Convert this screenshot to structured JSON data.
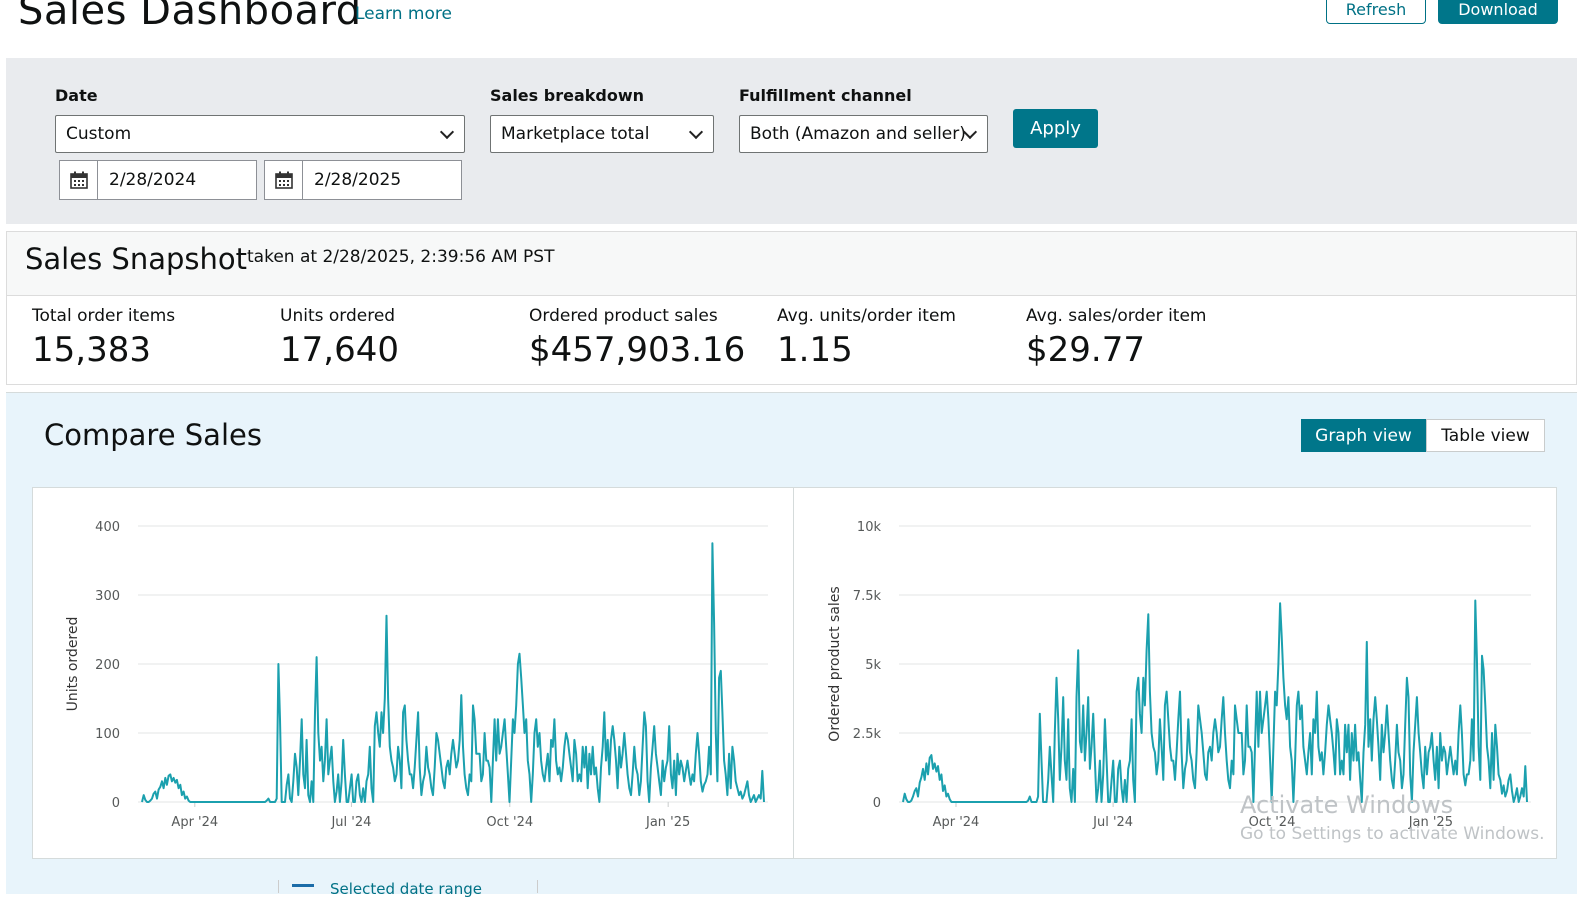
{
  "header": {
    "title": "Sales Dashboard",
    "learn_more": "Learn more",
    "refresh": "Refresh",
    "download": "Download"
  },
  "filters": {
    "date_label": "Date",
    "date_value": "Custom",
    "start_date": "2/28/2024",
    "end_date": "2/28/2025",
    "breakdown_label": "Sales breakdown",
    "breakdown_value": "Marketplace total",
    "channel_label": "Fulfillment channel",
    "channel_value": "Both (Amazon and seller)",
    "apply": "Apply"
  },
  "snapshot": {
    "title": "Sales Snapshot",
    "timestamp": "taken at 2/28/2025, 2:39:56 AM PST",
    "metrics": [
      {
        "label": "Total order items",
        "value": "15,383"
      },
      {
        "label": "Units ordered",
        "value": "17,640"
      },
      {
        "label": "Ordered product sales",
        "value": "$457,903.16"
      },
      {
        "label": "Avg. units/order item",
        "value": "1.15"
      },
      {
        "label": "Avg. sales/order item",
        "value": "$29.77"
      }
    ]
  },
  "compare": {
    "title": "Compare Sales",
    "graph_view": "Graph view",
    "table_view": "Table view",
    "partial_legend": "Selected date range"
  },
  "chart_data": [
    {
      "type": "line",
      "ylabel": "Units ordered",
      "ylim": [
        0,
        400
      ],
      "yticks": [
        "0",
        "100",
        "200",
        "300",
        "400"
      ],
      "xticks": [
        "Apr '24",
        "Jul '24",
        "Oct '24",
        "Jan '25"
      ],
      "x_range": [
        "2024-02-28",
        "2025-02-28"
      ],
      "color": "#1ba0ae",
      "series": [
        {
          "values": [
            0,
            10,
            3,
            0,
            0,
            2,
            5,
            12,
            15,
            5,
            18,
            22,
            30,
            20,
            35,
            25,
            38,
            40,
            30,
            35,
            28,
            32,
            20,
            25,
            10,
            15,
            5,
            8,
            2,
            0,
            0,
            0,
            0,
            0,
            0,
            0,
            0,
            0,
            0,
            0,
            0,
            0,
            0,
            0,
            0,
            0,
            0,
            0,
            0,
            0,
            0,
            0,
            0,
            0,
            0,
            0,
            0,
            0,
            0,
            0,
            0,
            0,
            0,
            0,
            0,
            0,
            0,
            0,
            0,
            0,
            0,
            0,
            0,
            0,
            0,
            2,
            5,
            0,
            0,
            0,
            0,
            5,
            200,
            120,
            0,
            0,
            0,
            25,
            40,
            5,
            0,
            30,
            70,
            50,
            10,
            60,
            120,
            40,
            20,
            90,
            10,
            0,
            30,
            0,
            130,
            210,
            100,
            60,
            80,
            30,
            60,
            120,
            40,
            60,
            80,
            30,
            0,
            15,
            40,
            0,
            30,
            90,
            40,
            0,
            0,
            20,
            40,
            0,
            0,
            30,
            40,
            10,
            0,
            20,
            0,
            30,
            40,
            80,
            20,
            0,
            110,
            130,
            100,
            80,
            130,
            100,
            150,
            270,
            150,
            80,
            60,
            50,
            30,
            40,
            80,
            60,
            20,
            130,
            140,
            90,
            60,
            40,
            40,
            20,
            50,
            90,
            130,
            50,
            10,
            30,
            40,
            80,
            50,
            40,
            20,
            10,
            50,
            100,
            90,
            70,
            50,
            30,
            20,
            50,
            60,
            40,
            70,
            90,
            70,
            50,
            60,
            90,
            155,
            80,
            40,
            20,
            10,
            40,
            30,
            140,
            120,
            70,
            70,
            70,
            30,
            40,
            100,
            60,
            60,
            50,
            0,
            60,
            120,
            60,
            120,
            70,
            80,
            100,
            120,
            80,
            40,
            0,
            60,
            120,
            100,
            140,
            200,
            215,
            180,
            140,
            100,
            120,
            60,
            40,
            0,
            40,
            100,
            120,
            80,
            100,
            60,
            40,
            30,
            50,
            70,
            30,
            90,
            80,
            120,
            60,
            40,
            50,
            30,
            50,
            80,
            100,
            90,
            70,
            50,
            30,
            90,
            70,
            30,
            40,
            30,
            80,
            50,
            80,
            20,
            70,
            40,
            80,
            40,
            50,
            20,
            0,
            50,
            80,
            130,
            60,
            90,
            40,
            90,
            110,
            90,
            60,
            20,
            80,
            50,
            70,
            100,
            70,
            40,
            20,
            10,
            40,
            80,
            50,
            40,
            10,
            30,
            80,
            130,
            110,
            30,
            0,
            50,
            80,
            110,
            70,
            50,
            30,
            10,
            60,
            30,
            50,
            60,
            110,
            40,
            20,
            60,
            10,
            70,
            40,
            60,
            50,
            30,
            45,
            60,
            40,
            25,
            40,
            30,
            70,
            100,
            70,
            30,
            15,
            25,
            30,
            40,
            80,
            40,
            375,
            260,
            100,
            30,
            180,
            190,
            130,
            60,
            40,
            10,
            70,
            20,
            80,
            60,
            30,
            20,
            10,
            15,
            5,
            10,
            20,
            30,
            10,
            0,
            5,
            10,
            0,
            5,
            10,
            5,
            45,
            0
          ]
        }
      ]
    },
    {
      "type": "line",
      "ylabel": "Ordered product sales",
      "ylim": [
        0,
        10000
      ],
      "yticks": [
        "0",
        "2.5k",
        "5k",
        "7.5k",
        "10k"
      ],
      "xticks": [
        "Apr '24",
        "Jul '24",
        "Oct '24",
        "Jan '25"
      ],
      "x_range": [
        "2024-02-28",
        "2025-02-28"
      ],
      "color": "#1ba0ae",
      "series": [
        {
          "values": [
            0,
            300,
            100,
            0,
            0,
            50,
            200,
            400,
            500,
            200,
            700,
            900,
            1200,
            800,
            1400,
            1000,
            1600,
            1700,
            1200,
            1400,
            1100,
            1300,
            800,
            1000,
            400,
            600,
            200,
            300,
            100,
            0,
            0,
            0,
            0,
            0,
            0,
            0,
            0,
            0,
            0,
            0,
            0,
            0,
            0,
            0,
            0,
            0,
            0,
            0,
            0,
            0,
            0,
            0,
            0,
            0,
            0,
            0,
            0,
            0,
            0,
            0,
            0,
            0,
            0,
            0,
            0,
            0,
            0,
            0,
            0,
            0,
            0,
            0,
            0,
            0,
            0,
            50,
            200,
            0,
            0,
            0,
            0,
            200,
            3200,
            1500,
            0,
            0,
            0,
            800,
            2000,
            1000,
            0,
            2500,
            4500,
            3000,
            800,
            2000,
            3800,
            1500,
            800,
            3000,
            500,
            0,
            1200,
            0,
            3800,
            5500,
            2200,
            1800,
            3500,
            1500,
            2500,
            3800,
            1200,
            2000,
            3200,
            1500,
            0,
            500,
            1500,
            0,
            1000,
            3000,
            1500,
            0,
            0,
            800,
            1500,
            0,
            0,
            1200,
            1500,
            500,
            0,
            800,
            0,
            1200,
            1500,
            3000,
            800,
            0,
            4000,
            4500,
            3200,
            2500,
            4500,
            3500,
            5500,
            6800,
            4000,
            2500,
            2000,
            1800,
            1000,
            1500,
            3000,
            2000,
            800,
            3500,
            4000,
            3000,
            2000,
            1500,
            1500,
            800,
            1800,
            3000,
            4000,
            1800,
            500,
            1200,
            1500,
            3000,
            1800,
            1500,
            800,
            500,
            1800,
            3500,
            3000,
            2500,
            1800,
            1000,
            800,
            1800,
            2000,
            1500,
            2500,
            3000,
            2500,
            1800,
            2000,
            3000,
            3800,
            2500,
            1500,
            800,
            500,
            1500,
            1000,
            3500,
            3000,
            2500,
            2500,
            2500,
            1000,
            1500,
            3500,
            2000,
            2000,
            1800,
            0,
            2000,
            4000,
            2000,
            4000,
            2500,
            3000,
            3500,
            4000,
            3000,
            1500,
            0,
            2000,
            4000,
            3500,
            5000,
            7200,
            6000,
            4500,
            3500,
            3000,
            3800,
            2000,
            1500,
            0,
            1500,
            3500,
            4000,
            3000,
            3500,
            2000,
            1500,
            1000,
            1800,
            2500,
            1000,
            3000,
            2500,
            4000,
            2000,
            1500,
            1800,
            1000,
            1800,
            2800,
            3500,
            3000,
            2500,
            1800,
            1000,
            3000,
            2500,
            1000,
            1500,
            1000,
            2800,
            1800,
            2800,
            800,
            2500,
            1500,
            2800,
            1500,
            1800,
            800,
            0,
            1800,
            2800,
            5800,
            2000,
            3000,
            1500,
            3000,
            3800,
            3000,
            2000,
            800,
            2800,
            1800,
            2500,
            3500,
            2500,
            1500,
            800,
            500,
            1500,
            2800,
            1800,
            1500,
            500,
            1000,
            2800,
            4500,
            3800,
            1000,
            0,
            1800,
            2800,
            3800,
            2500,
            1800,
            1000,
            500,
            2000,
            1000,
            1800,
            2000,
            2500,
            1500,
            800,
            2000,
            500,
            2500,
            1500,
            2000,
            1800,
            1000,
            1500,
            2000,
            1500,
            1000,
            1500,
            1000,
            2500,
            3500,
            2500,
            1000,
            600,
            1000,
            1000,
            1500,
            3000,
            1500,
            7300,
            5200,
            2000,
            800,
            5300,
            4800,
            3500,
            2000,
            1500,
            500,
            2500,
            800,
            2800,
            2000,
            1000,
            800,
            300,
            600,
            200,
            400,
            800,
            1000,
            400,
            0,
            200,
            500,
            0,
            200,
            500,
            200,
            1300,
            0
          ]
        }
      ]
    }
  ],
  "watermark": {
    "line1": "Activate Windows",
    "line2": "Go to Settings to activate Windows."
  }
}
